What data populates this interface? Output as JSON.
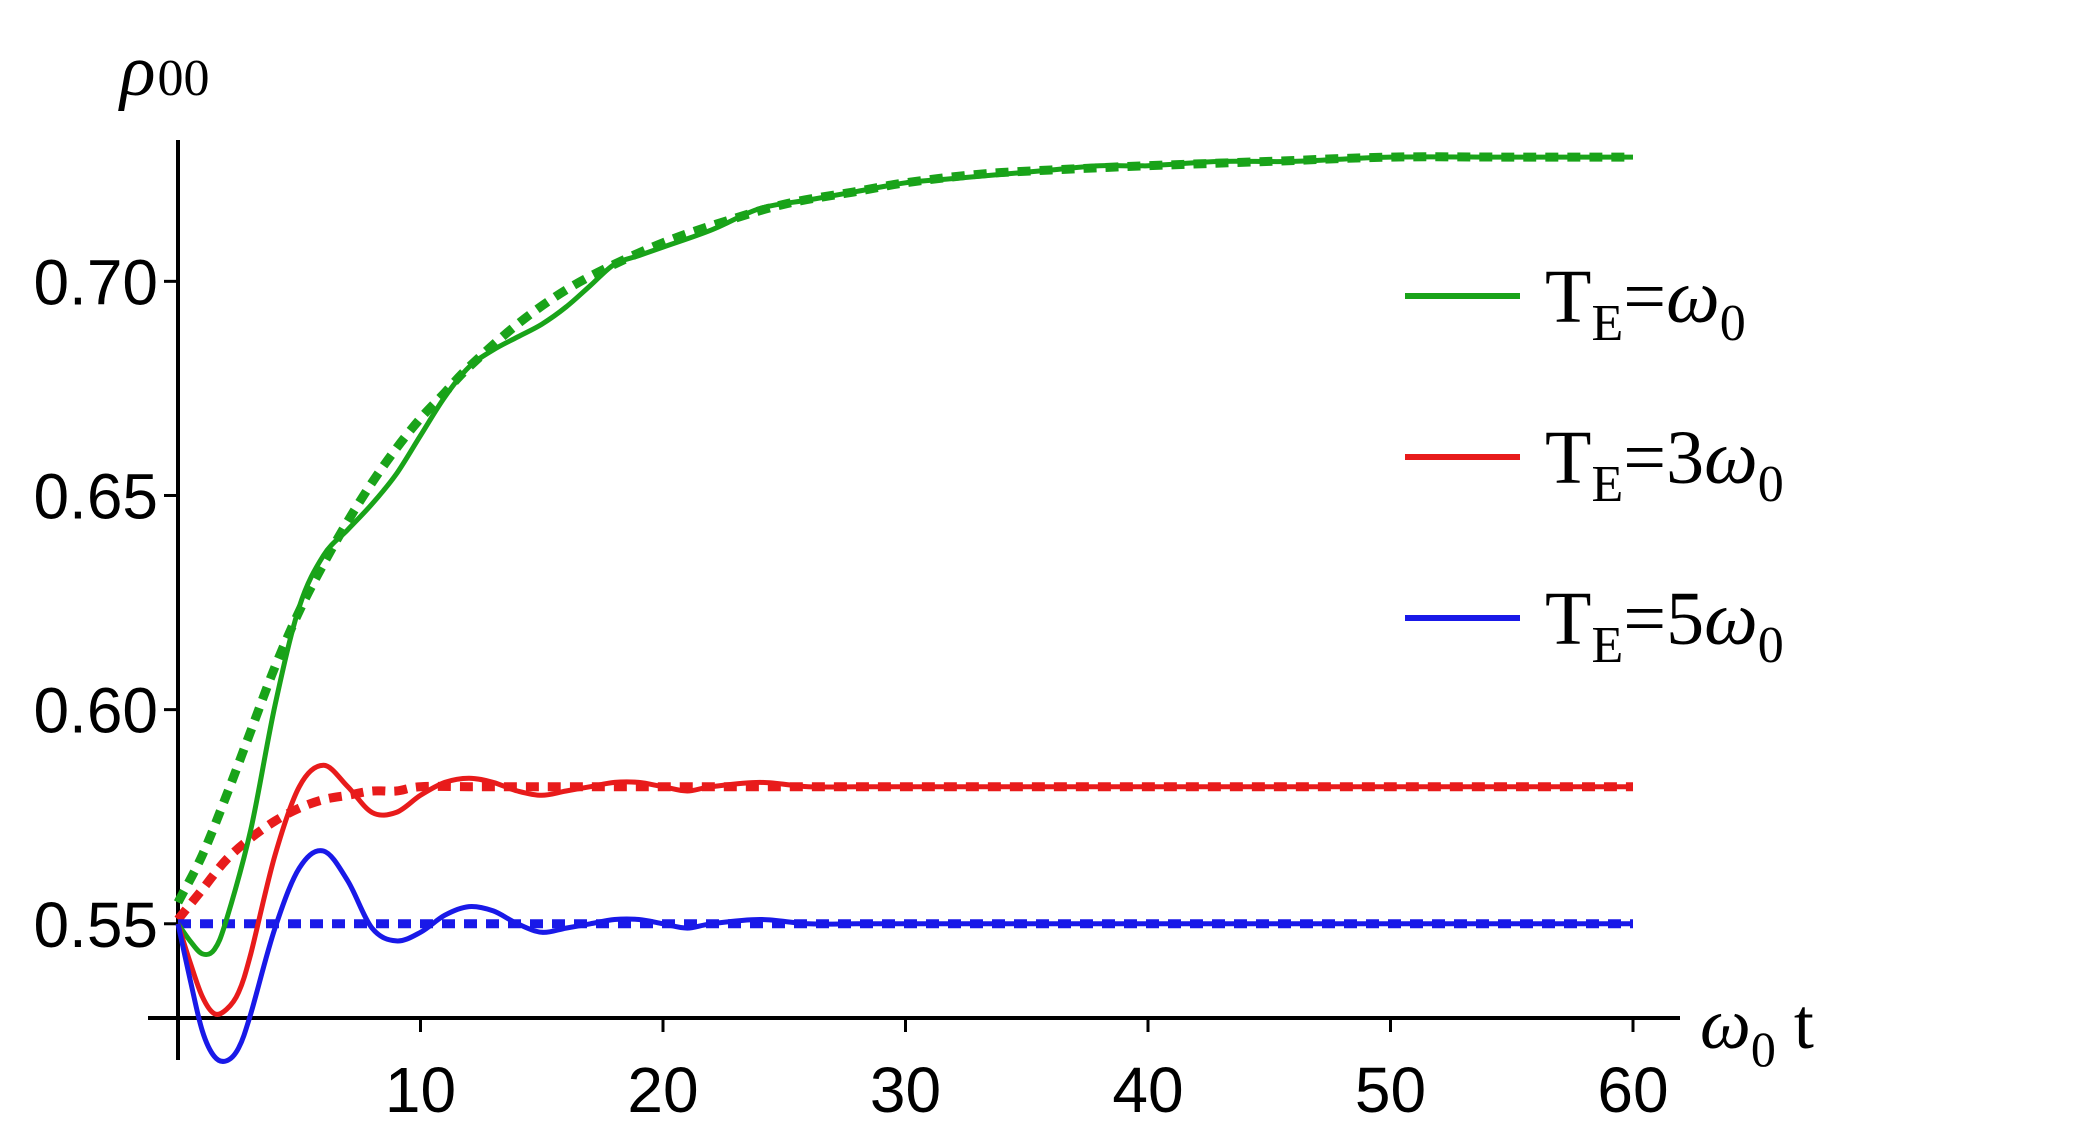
{
  "chart_data": {
    "type": "line",
    "title": "",
    "xlabel": {
      "symbol": "ω",
      "sub": "0",
      "rest": " t"
    },
    "ylabel": {
      "symbol": "ρ",
      "sub": "00"
    },
    "xlim": [
      0,
      60
    ],
    "ylim": [
      0.528,
      0.733
    ],
    "x_ticks": [
      10,
      20,
      30,
      40,
      50,
      60
    ],
    "y_ticks": [
      0.55,
      0.6,
      0.65,
      0.7
    ],
    "y_tick_labels": [
      "0.55",
      "0.60",
      "0.65",
      "0.70"
    ],
    "grid": false,
    "legend_position": "right",
    "series": [
      {
        "name": "T_E=ω_0",
        "label": {
          "T": "T",
          "sub": "E",
          "eq": "=",
          "coef": "",
          "w": "ω",
          "wsub": "0"
        },
        "color": "#19a319",
        "style": "solid",
        "x": [
          0,
          0.5,
          1,
          1.5,
          2,
          3,
          4,
          5,
          6,
          7,
          8,
          9,
          10,
          11,
          12,
          13,
          14,
          15,
          16,
          17,
          18,
          19,
          20,
          22,
          24,
          26,
          28,
          30,
          32,
          34,
          36,
          38,
          40,
          43,
          46,
          50,
          55,
          60
        ],
        "y": [
          0.55,
          0.546,
          0.543,
          0.544,
          0.551,
          0.572,
          0.601,
          0.624,
          0.636,
          0.642,
          0.648,
          0.655,
          0.664,
          0.673,
          0.68,
          0.684,
          0.687,
          0.69,
          0.694,
          0.699,
          0.704,
          0.706,
          0.708,
          0.712,
          0.717,
          0.719,
          0.721,
          0.723,
          0.724,
          0.725,
          0.726,
          0.727,
          0.727,
          0.728,
          0.728,
          0.729,
          0.729,
          0.729
        ]
      },
      {
        "name": "",
        "color": "#19a319",
        "style": "dotted",
        "x": [
          0,
          1,
          2,
          3,
          4,
          5,
          6,
          7,
          8,
          9,
          10,
          11,
          12,
          14,
          16,
          18,
          20,
          22,
          25,
          28,
          30,
          33,
          36,
          40,
          45,
          50,
          55,
          60
        ],
        "y": [
          0.555,
          0.566,
          0.58,
          0.595,
          0.61,
          0.623,
          0.634,
          0.644,
          0.653,
          0.661,
          0.668,
          0.674,
          0.68,
          0.69,
          0.698,
          0.704,
          0.709,
          0.713,
          0.718,
          0.721,
          0.723,
          0.725,
          0.726,
          0.727,
          0.728,
          0.729,
          0.729,
          0.729
        ]
      },
      {
        "name": "T_E=3ω_0",
        "label": {
          "T": "T",
          "sub": "E",
          "eq": "=",
          "coef": "3",
          "w": "ω",
          "wsub": "0"
        },
        "color": "#e81b1b",
        "style": "solid",
        "x": [
          0,
          0.5,
          1,
          1.5,
          2,
          2.5,
          3,
          4,
          5,
          6,
          7,
          8,
          9,
          10,
          11,
          12,
          13,
          14,
          15,
          16,
          17,
          18,
          19,
          20,
          21,
          22,
          24,
          26,
          28,
          30,
          35,
          40,
          50,
          60
        ],
        "y": [
          0.55,
          0.541,
          0.533,
          0.529,
          0.53,
          0.534,
          0.543,
          0.566,
          0.582,
          0.587,
          0.582,
          0.576,
          0.576,
          0.58,
          0.583,
          0.584,
          0.583,
          0.581,
          0.58,
          0.581,
          0.582,
          0.583,
          0.583,
          0.582,
          0.581,
          0.582,
          0.583,
          0.582,
          0.582,
          0.582,
          0.582,
          0.582,
          0.582,
          0.582
        ]
      },
      {
        "name": "",
        "color": "#e81b1b",
        "style": "dotted",
        "x": [
          0,
          1,
          2,
          3,
          4,
          5,
          6,
          7,
          8,
          9,
          10,
          12,
          14,
          16,
          20,
          30,
          40,
          50,
          60
        ],
        "y": [
          0.551,
          0.558,
          0.565,
          0.57,
          0.574,
          0.577,
          0.579,
          0.58,
          0.581,
          0.581,
          0.582,
          0.582,
          0.582,
          0.582,
          0.582,
          0.582,
          0.582,
          0.582,
          0.582
        ]
      },
      {
        "name": "T_E=5ω_0",
        "label": {
          "T": "T",
          "sub": "E",
          "eq": "=",
          "coef": "5",
          "w": "ω",
          "wsub": "0"
        },
        "color": "#1919e8",
        "style": "solid",
        "x": [
          0,
          0.5,
          1,
          1.5,
          2,
          2.5,
          3,
          4,
          5,
          6,
          7,
          8,
          9,
          10,
          11,
          12,
          13,
          14,
          15,
          16,
          17,
          18,
          19,
          20,
          21,
          22,
          24,
          26,
          28,
          30,
          35,
          40,
          50,
          60
        ],
        "y": [
          0.55,
          0.537,
          0.525,
          0.519,
          0.518,
          0.521,
          0.529,
          0.549,
          0.563,
          0.567,
          0.56,
          0.549,
          0.546,
          0.548,
          0.552,
          0.554,
          0.553,
          0.55,
          0.548,
          0.549,
          0.55,
          0.551,
          0.551,
          0.55,
          0.549,
          0.55,
          0.551,
          0.55,
          0.55,
          0.55,
          0.55,
          0.55,
          0.55,
          0.55
        ]
      },
      {
        "name": "",
        "color": "#1919e8",
        "style": "dotted",
        "x": [
          0,
          60
        ],
        "y": [
          0.55,
          0.55
        ]
      }
    ]
  }
}
